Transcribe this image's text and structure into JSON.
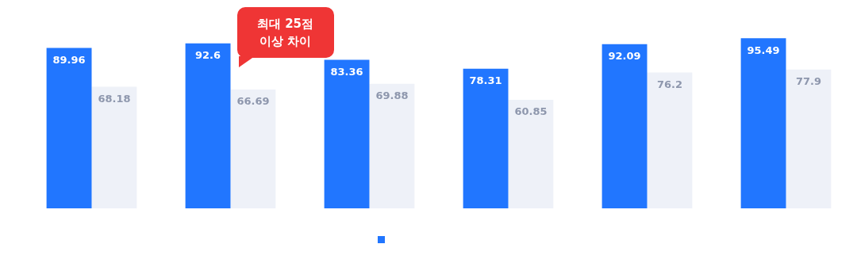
{
  "chart_data": {
    "type": "bar",
    "categories": [
      null,
      null,
      null,
      null,
      null,
      null
    ],
    "series": [
      {
        "color": "#2176ff",
        "values": [
          89.96,
          92.6,
          83.36,
          78.31,
          92.09,
          95.49
        ]
      },
      {
        "color": "#eef1f8",
        "values": [
          68.18,
          66.69,
          69.88,
          60.85,
          76.2,
          77.9
        ]
      }
    ],
    "data_labels": true,
    "annotations": [
      "최대 25점\n이상 차이"
    ]
  }
}
